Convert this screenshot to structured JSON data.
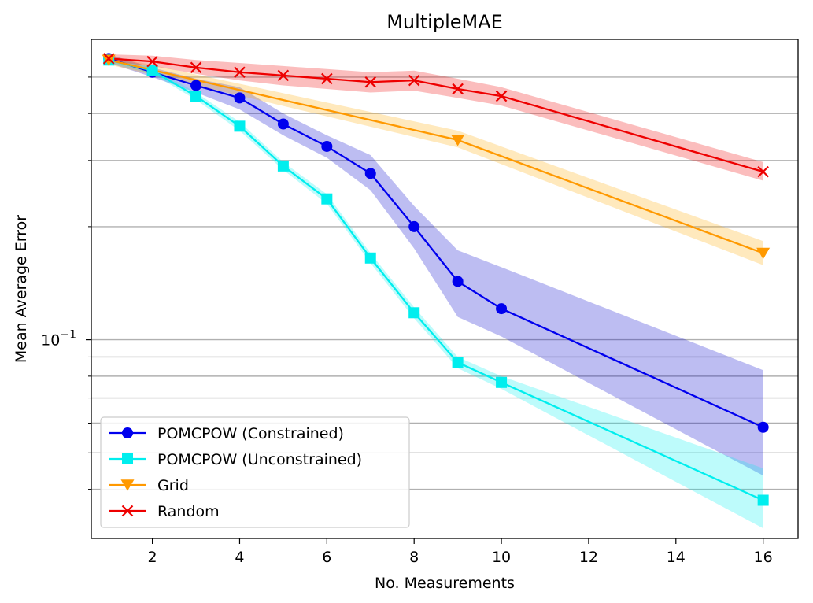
{
  "chart_data": {
    "type": "line",
    "title": "MultipleMAE",
    "xlabel": "No. Measurements",
    "ylabel": "Mean Average Error",
    "xlim": [
      0.6,
      16.8
    ],
    "ylim": [
      0.0296,
      0.63
    ],
    "yscale": "log",
    "grid": "y-major-and-minor",
    "legend_position": "lower-left",
    "x_ticks": [
      2,
      4,
      6,
      8,
      10,
      12,
      14,
      16
    ],
    "y_major_ticks": [
      {
        "value": 0.1,
        "base": "10",
        "exponent": "−1"
      }
    ],
    "y_minor_ticks": [
      0.04,
      0.05,
      0.06,
      0.07,
      0.08,
      0.09,
      0.2,
      0.3,
      0.4,
      0.5
    ],
    "series": [
      {
        "name": "POMCPOW (Constrained)",
        "color": "#0000ee",
        "band_color": "#0000cc",
        "marker": "circle",
        "x": [
          1,
          2,
          3,
          4,
          5,
          6,
          7,
          8,
          9,
          10,
          16
        ],
        "y": [
          0.56,
          0.515,
          0.475,
          0.44,
          0.375,
          0.327,
          0.277,
          0.2,
          0.143,
          0.121,
          0.0585
        ],
        "lower": [
          0.545,
          0.5,
          0.455,
          0.41,
          0.35,
          0.305,
          0.25,
          0.175,
          0.115,
          0.102,
          0.0435
        ],
        "upper": [
          0.575,
          0.53,
          0.495,
          0.47,
          0.4,
          0.35,
          0.31,
          0.227,
          0.173,
          0.156,
          0.083
        ]
      },
      {
        "name": "POMCPOW (Unconstrained)",
        "color": "#00eeee",
        "band_color": "#00eeee",
        "marker": "square",
        "x": [
          1,
          2,
          3,
          4,
          5,
          6,
          7,
          8,
          9,
          10,
          16
        ],
        "y": [
          0.555,
          0.52,
          0.445,
          0.37,
          0.29,
          0.237,
          0.165,
          0.118,
          0.087,
          0.077,
          0.0374
        ],
        "lower": [
          0.545,
          0.51,
          0.435,
          0.36,
          0.283,
          0.23,
          0.16,
          0.114,
          0.084,
          0.074,
          0.0315
        ],
        "upper": [
          0.565,
          0.53,
          0.455,
          0.38,
          0.297,
          0.244,
          0.17,
          0.122,
          0.09,
          0.08,
          0.0455
        ]
      },
      {
        "name": "Grid",
        "color": "#ff9900",
        "band_color": "#ffaa00",
        "marker": "triangle-down",
        "x": [
          1,
          9,
          16
        ],
        "y": [
          0.555,
          0.34,
          0.17
        ],
        "lower": [
          0.54,
          0.325,
          0.158
        ],
        "upper": [
          0.57,
          0.36,
          0.183
        ]
      },
      {
        "name": "Random",
        "color": "#ee0000",
        "band_color": "#ee0000",
        "marker": "x",
        "x": [
          1,
          2,
          3,
          4,
          5,
          6,
          7,
          8,
          9,
          10,
          16
        ],
        "y": [
          0.56,
          0.55,
          0.53,
          0.515,
          0.505,
          0.495,
          0.485,
          0.49,
          0.465,
          0.445,
          0.28
        ],
        "lower": [
          0.55,
          0.535,
          0.51,
          0.49,
          0.475,
          0.465,
          0.455,
          0.46,
          0.44,
          0.42,
          0.265
        ],
        "upper": [
          0.575,
          0.57,
          0.555,
          0.545,
          0.535,
          0.525,
          0.515,
          0.52,
          0.495,
          0.47,
          0.297
        ]
      }
    ]
  }
}
